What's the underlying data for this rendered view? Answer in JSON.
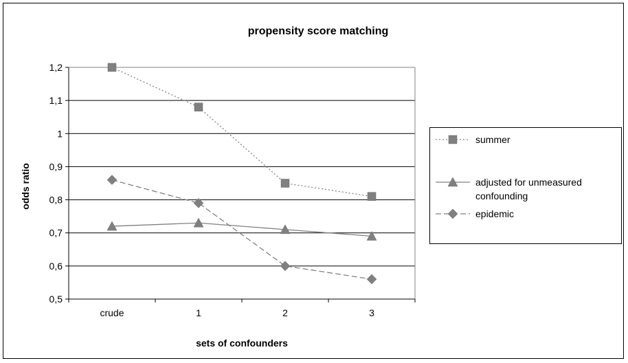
{
  "chart_data": {
    "type": "line",
    "title": "propensity score matching",
    "xlabel": "sets of confounders",
    "ylabel": "odds ratio",
    "categories": [
      "crude",
      "1",
      "2",
      "3"
    ],
    "ylim": [
      0.5,
      1.2
    ],
    "yticks": [
      "0,5",
      "0,6",
      "0,7",
      "0,8",
      "0,9",
      "1",
      "1,1",
      "1,2"
    ],
    "ytick_values": [
      0.5,
      0.6,
      0.7,
      0.8,
      0.9,
      1.0,
      1.1,
      1.2
    ],
    "grid": true,
    "legend_position": "right",
    "series": [
      {
        "name": "summer",
        "values": [
          1.2,
          1.08,
          0.85,
          0.81
        ],
        "marker": "square",
        "line": "dotted",
        "color": "#808080"
      },
      {
        "name": "adjusted for unmeasured confounding",
        "name_lines": [
          "adjusted for unmeasured",
          "confounding"
        ],
        "values": [
          0.72,
          0.73,
          0.71,
          0.69
        ],
        "marker": "triangle",
        "line": "solid",
        "color": "#808080"
      },
      {
        "name": "epidemic",
        "values": [
          0.86,
          0.79,
          0.6,
          0.56
        ],
        "marker": "diamond",
        "line": "dashed",
        "color": "#808080"
      }
    ]
  }
}
